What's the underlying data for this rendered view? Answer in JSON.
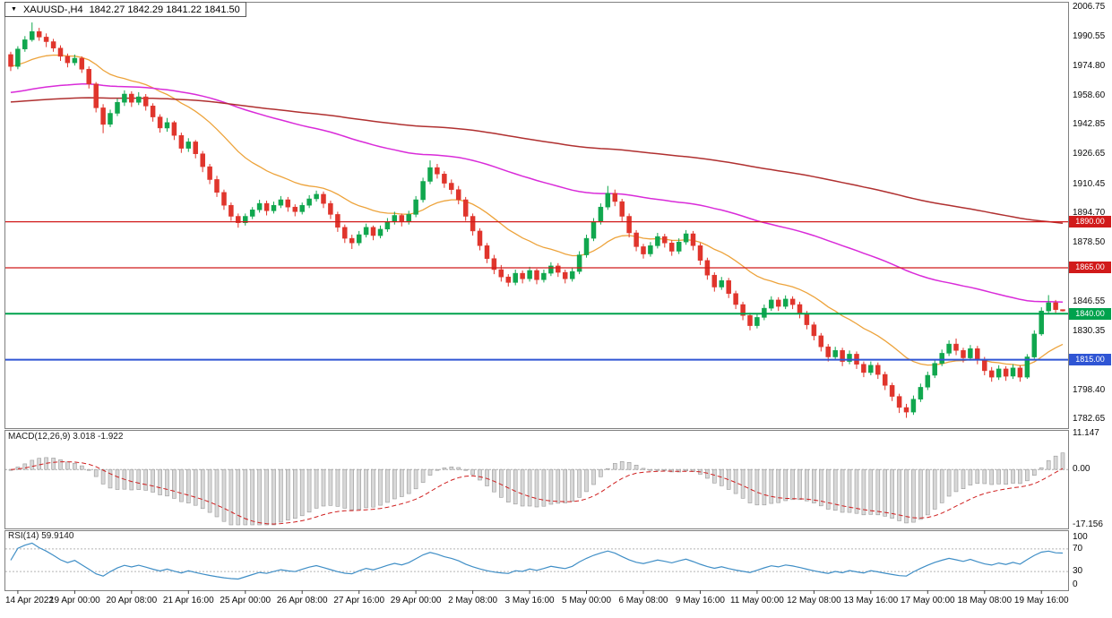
{
  "title": {
    "marker": "▼",
    "symbol_period": "XAUUSD-,H4",
    "ohlc": "1842.27 1842.29 1841.22 1841.50"
  },
  "chart_data": {
    "type": "candlestick",
    "symbol": "XAUUSD-",
    "timeframe": "H4",
    "bull_color": "#10a74e",
    "bear_color": "#e0352c",
    "y_axis": {
      "min": 1782.65,
      "max": 2006.75,
      "labels": [
        "2006.75",
        "1990.55",
        "1974.80",
        "1958.60",
        "1942.85",
        "1926.65",
        "1910.45",
        "1894.70",
        "1878.50",
        "1846.55",
        "1830.35",
        "1798.40",
        "1782.65"
      ]
    },
    "x_axis": {
      "first_index": 1,
      "step": 8,
      "labels": [
        "14 Apr 2022",
        "19 Apr 00:00",
        "20 Apr 08:00",
        "21 Apr 16:00",
        "25 Apr 00:00",
        "26 Apr 08:00",
        "27 Apr 16:00",
        "29 Apr 00:00",
        "2 May 08:00",
        "3 May 16:00",
        "5 May 00:00",
        "6 May 08:00",
        "9 May 16:00",
        "11 May 00:00",
        "12 May 08:00",
        "13 May 16:00",
        "17 May 00:00",
        "18 May 08:00",
        "19 May 16:00"
      ]
    },
    "hlines": [
      {
        "price": 1890.0,
        "label": "1890.00",
        "color": "#d11a1a",
        "width": 1.3
      },
      {
        "price": 1865.0,
        "label": "1865.00",
        "color": "#d11a1a",
        "width": 1.3
      },
      {
        "price": 1840.0,
        "label": "1840.00",
        "color": "#00a24d",
        "width": 2
      },
      {
        "price": 1815.0,
        "label": "1815.00",
        "color": "#2f55d4",
        "width": 2
      }
    ],
    "moving_averages": [
      {
        "name": "fast",
        "period": 20,
        "color": "#eda33b",
        "width": 1.3
      },
      {
        "name": "medium",
        "period": 90,
        "color": "#d92bd9",
        "width": 1.5,
        "start_value": 1960
      },
      {
        "name": "slow",
        "period": 240,
        "color": "#b03030",
        "width": 1.5,
        "start_value": 1955
      }
    ],
    "indicators": [
      {
        "type": "macd",
        "label": "MACD(12,26,9) 3.018 -1.922",
        "params": [
          12,
          26,
          9
        ],
        "histogram_color": "#d8d8d8",
        "histogram_edge": "#999999",
        "signal_color": "#cf1f1f",
        "axis": {
          "max": 11.147,
          "min": -17.156,
          "labels": [
            "11.147",
            "0.00",
            "-17.156"
          ]
        }
      },
      {
        "type": "rsi",
        "label": "RSI(14) 59.9140",
        "period": 14,
        "line_color": "#3f8ec6",
        "axis": {
          "max": 100,
          "min": 0,
          "labels": [
            "100",
            "70",
            "30",
            "0"
          ],
          "levels": [
            70,
            30
          ]
        }
      }
    ],
    "candles": [
      [
        1981.0,
        1982.5,
        1972.0,
        1974.5
      ],
      [
        1974.5,
        1985.5,
        1973.0,
        1984.0
      ],
      [
        1984.0,
        1991.0,
        1982.5,
        1989.0
      ],
      [
        1989.0,
        1998.4,
        1988.0,
        1993.5
      ],
      [
        1993.5,
        1995.5,
        1988.5,
        1990.5
      ],
      [
        1990.5,
        1992.5,
        1985.0,
        1988.0
      ],
      [
        1988.0,
        1989.5,
        1982.5,
        1984.5
      ],
      [
        1984.5,
        1986.0,
        1977.5,
        1980.0
      ],
      [
        1980.0,
        1981.5,
        1974.0,
        1976.5
      ],
      [
        1976.5,
        1981.0,
        1975.0,
        1979.0
      ],
      [
        1979.0,
        1980.0,
        1971.0,
        1973.0
      ],
      [
        1973.0,
        1974.5,
        1962.5,
        1965.0
      ],
      [
        1965.0,
        1966.0,
        1949.5,
        1952.0
      ],
      [
        1952.0,
        1954.0,
        1938.2,
        1943.0
      ],
      [
        1943.0,
        1951.0,
        1941.5,
        1949.0
      ],
      [
        1949.0,
        1957.0,
        1947.5,
        1955.0
      ],
      [
        1955.0,
        1961.5,
        1953.0,
        1959.5
      ],
      [
        1959.5,
        1961.0,
        1952.5,
        1955.0
      ],
      [
        1955.0,
        1960.5,
        1953.5,
        1958.0
      ],
      [
        1958.0,
        1959.5,
        1950.5,
        1953.0
      ],
      [
        1953.0,
        1954.5,
        1944.5,
        1947.0
      ],
      [
        1947.0,
        1948.5,
        1938.5,
        1941.0
      ],
      [
        1941.0,
        1946.5,
        1939.0,
        1944.0
      ],
      [
        1944.0,
        1945.0,
        1934.5,
        1937.0
      ],
      [
        1937.0,
        1938.5,
        1927.5,
        1930.0
      ],
      [
        1930.0,
        1935.5,
        1928.0,
        1933.5
      ],
      [
        1933.5,
        1934.5,
        1924.5,
        1927.0
      ],
      [
        1927.0,
        1928.5,
        1917.0,
        1920.0
      ],
      [
        1920.0,
        1921.5,
        1910.5,
        1913.0
      ],
      [
        1913.0,
        1915.0,
        1903.5,
        1906.0
      ],
      [
        1906.0,
        1907.5,
        1896.5,
        1899.0
      ],
      [
        1899.0,
        1900.5,
        1890.5,
        1893.0
      ],
      [
        1893.0,
        1894.5,
        1886.8,
        1889.5
      ],
      [
        1889.5,
        1894.5,
        1888.0,
        1893.0
      ],
      [
        1893.0,
        1898.0,
        1891.5,
        1896.5
      ],
      [
        1896.5,
        1902.0,
        1895.0,
        1900.0
      ],
      [
        1900.0,
        1901.5,
        1893.5,
        1896.0
      ],
      [
        1896.0,
        1901.0,
        1894.5,
        1899.0
      ],
      [
        1899.0,
        1904.0,
        1897.5,
        1902.0
      ],
      [
        1902.0,
        1903.5,
        1895.5,
        1898.0
      ],
      [
        1898.0,
        1899.5,
        1893.0,
        1895.5
      ],
      [
        1895.5,
        1900.5,
        1894.0,
        1899.0
      ],
      [
        1899.0,
        1904.5,
        1897.5,
        1902.5
      ],
      [
        1902.5,
        1907.0,
        1901.0,
        1905.0
      ],
      [
        1905.0,
        1906.5,
        1897.5,
        1900.0
      ],
      [
        1900.0,
        1901.5,
        1891.5,
        1894.0
      ],
      [
        1894.0,
        1895.5,
        1884.5,
        1887.0
      ],
      [
        1887.0,
        1888.5,
        1878.5,
        1881.0
      ],
      [
        1881.0,
        1883.0,
        1875.2,
        1878.5
      ],
      [
        1878.5,
        1885.0,
        1877.0,
        1883.0
      ],
      [
        1883.0,
        1889.0,
        1881.5,
        1887.0
      ],
      [
        1887.0,
        1888.0,
        1880.0,
        1882.5
      ],
      [
        1882.5,
        1888.0,
        1881.0,
        1886.0
      ],
      [
        1886.0,
        1892.0,
        1884.5,
        1890.0
      ],
      [
        1890.0,
        1895.5,
        1888.5,
        1893.5
      ],
      [
        1893.5,
        1894.5,
        1887.5,
        1890.0
      ],
      [
        1890.0,
        1896.0,
        1888.5,
        1894.0
      ],
      [
        1894.0,
        1904.0,
        1892.5,
        1902.0
      ],
      [
        1902.0,
        1914.0,
        1900.5,
        1912.0
      ],
      [
        1912.0,
        1923.4,
        1910.5,
        1919.5
      ],
      [
        1919.5,
        1921.5,
        1913.5,
        1916.0
      ],
      [
        1916.0,
        1917.5,
        1908.5,
        1911.0
      ],
      [
        1911.0,
        1913.0,
        1905.0,
        1907.5
      ],
      [
        1907.5,
        1909.5,
        1899.5,
        1902.0
      ],
      [
        1902.0,
        1903.5,
        1890.5,
        1893.0
      ],
      [
        1893.0,
        1894.5,
        1882.5,
        1885.0
      ],
      [
        1885.0,
        1886.5,
        1874.5,
        1877.0
      ],
      [
        1877.0,
        1878.5,
        1867.5,
        1870.0
      ],
      [
        1870.0,
        1872.0,
        1861.5,
        1864.0
      ],
      [
        1864.0,
        1866.5,
        1857.5,
        1860.0
      ],
      [
        1860.0,
        1861.5,
        1854.8,
        1857.0
      ],
      [
        1857.0,
        1864.0,
        1855.5,
        1862.0
      ],
      [
        1862.0,
        1863.5,
        1856.5,
        1859.0
      ],
      [
        1859.0,
        1865.5,
        1857.5,
        1863.5
      ],
      [
        1863.5,
        1864.5,
        1856.0,
        1858.5
      ],
      [
        1858.5,
        1864.0,
        1857.0,
        1862.0
      ],
      [
        1862.0,
        1868.0,
        1860.5,
        1866.0
      ],
      [
        1866.0,
        1867.5,
        1860.0,
        1862.5
      ],
      [
        1862.5,
        1864.0,
        1856.5,
        1859.0
      ],
      [
        1859.0,
        1865.0,
        1857.5,
        1863.0
      ],
      [
        1863.0,
        1874.0,
        1861.5,
        1872.0
      ],
      [
        1872.0,
        1883.0,
        1870.5,
        1881.0
      ],
      [
        1881.0,
        1892.0,
        1879.5,
        1890.0
      ],
      [
        1890.0,
        1900.0,
        1888.5,
        1898.0
      ],
      [
        1898.0,
        1909.5,
        1896.5,
        1905.5
      ],
      [
        1905.5,
        1907.5,
        1898.5,
        1901.0
      ],
      [
        1901.0,
        1902.5,
        1890.0,
        1893.0
      ],
      [
        1893.0,
        1894.5,
        1881.5,
        1884.0
      ],
      [
        1884.0,
        1885.5,
        1874.0,
        1876.5
      ],
      [
        1876.5,
        1878.0,
        1870.0,
        1872.5
      ],
      [
        1872.5,
        1879.0,
        1871.0,
        1877.0
      ],
      [
        1877.0,
        1884.0,
        1875.5,
        1882.0
      ],
      [
        1882.0,
        1883.5,
        1876.0,
        1878.5
      ],
      [
        1878.5,
        1880.0,
        1871.5,
        1874.0
      ],
      [
        1874.0,
        1881.0,
        1872.5,
        1879.0
      ],
      [
        1879.0,
        1885.5,
        1877.5,
        1883.5
      ],
      [
        1883.5,
        1885.0,
        1874.5,
        1877.0
      ],
      [
        1877.0,
        1878.5,
        1866.5,
        1869.0
      ],
      [
        1869.0,
        1870.5,
        1858.5,
        1861.0
      ],
      [
        1861.0,
        1862.5,
        1852.0,
        1854.5
      ],
      [
        1854.5,
        1860.0,
        1853.0,
        1858.0
      ],
      [
        1858.0,
        1859.5,
        1848.5,
        1851.0
      ],
      [
        1851.0,
        1852.5,
        1842.5,
        1845.0
      ],
      [
        1845.0,
        1846.5,
        1836.5,
        1839.0
      ],
      [
        1839.0,
        1840.5,
        1831.0,
        1833.5
      ],
      [
        1833.5,
        1840.0,
        1832.0,
        1838.0
      ],
      [
        1838.0,
        1845.0,
        1836.5,
        1843.0
      ],
      [
        1843.0,
        1849.5,
        1841.5,
        1847.5
      ],
      [
        1847.5,
        1849.0,
        1841.5,
        1844.0
      ],
      [
        1844.0,
        1850.0,
        1842.5,
        1848.0
      ],
      [
        1848.0,
        1849.5,
        1842.5,
        1845.0
      ],
      [
        1845.0,
        1846.5,
        1837.5,
        1840.0
      ],
      [
        1840.0,
        1841.5,
        1831.5,
        1834.0
      ],
      [
        1834.0,
        1835.5,
        1825.5,
        1828.0
      ],
      [
        1828.0,
        1829.5,
        1819.5,
        1822.0
      ],
      [
        1822.0,
        1823.5,
        1814.0,
        1816.5
      ],
      [
        1816.5,
        1822.0,
        1815.0,
        1820.0
      ],
      [
        1820.0,
        1821.5,
        1811.5,
        1814.0
      ],
      [
        1814.0,
        1820.0,
        1812.5,
        1818.0
      ],
      [
        1818.0,
        1819.5,
        1810.0,
        1812.5
      ],
      [
        1812.5,
        1814.0,
        1805.5,
        1808.0
      ],
      [
        1808.0,
        1814.0,
        1806.5,
        1812.0
      ],
      [
        1812.0,
        1813.5,
        1804.5,
        1807.0
      ],
      [
        1807.0,
        1808.5,
        1798.5,
        1801.0
      ],
      [
        1801.0,
        1802.5,
        1792.5,
        1795.0
      ],
      [
        1795.0,
        1796.5,
        1786.0,
        1789.0
      ],
      [
        1789.0,
        1791.0,
        1783.4,
        1786.5
      ],
      [
        1786.5,
        1795.5,
        1785.0,
        1793.5
      ],
      [
        1793.5,
        1802.0,
        1792.0,
        1800.0
      ],
      [
        1800.0,
        1808.5,
        1798.5,
        1806.5
      ],
      [
        1806.5,
        1815.0,
        1805.0,
        1813.0
      ],
      [
        1813.0,
        1820.5,
        1811.5,
        1818.5
      ],
      [
        1818.5,
        1825.5,
        1817.0,
        1823.5
      ],
      [
        1823.5,
        1826.5,
        1817.5,
        1820.0
      ],
      [
        1820.0,
        1821.5,
        1813.5,
        1816.0
      ],
      [
        1816.0,
        1823.0,
        1814.5,
        1821.0
      ],
      [
        1821.0,
        1822.5,
        1812.5,
        1815.0
      ],
      [
        1815.0,
        1816.5,
        1806.5,
        1809.0
      ],
      [
        1809.0,
        1811.0,
        1803.0,
        1805.5
      ],
      [
        1805.5,
        1812.0,
        1804.0,
        1810.0
      ],
      [
        1810.0,
        1811.5,
        1803.5,
        1806.0
      ],
      [
        1806.0,
        1812.5,
        1804.5,
        1810.5
      ],
      [
        1810.5,
        1812.0,
        1803.0,
        1805.5
      ],
      [
        1805.5,
        1818.0,
        1804.5,
        1816.5
      ],
      [
        1816.5,
        1831.0,
        1815.5,
        1829.0
      ],
      [
        1829.0,
        1843.5,
        1828.0,
        1841.5
      ],
      [
        1841.5,
        1850.1,
        1840.0,
        1846.0
      ],
      [
        1846.0,
        1847.5,
        1840.5,
        1842.27
      ],
      [
        1842.27,
        1842.29,
        1841.22,
        1841.5
      ]
    ]
  }
}
